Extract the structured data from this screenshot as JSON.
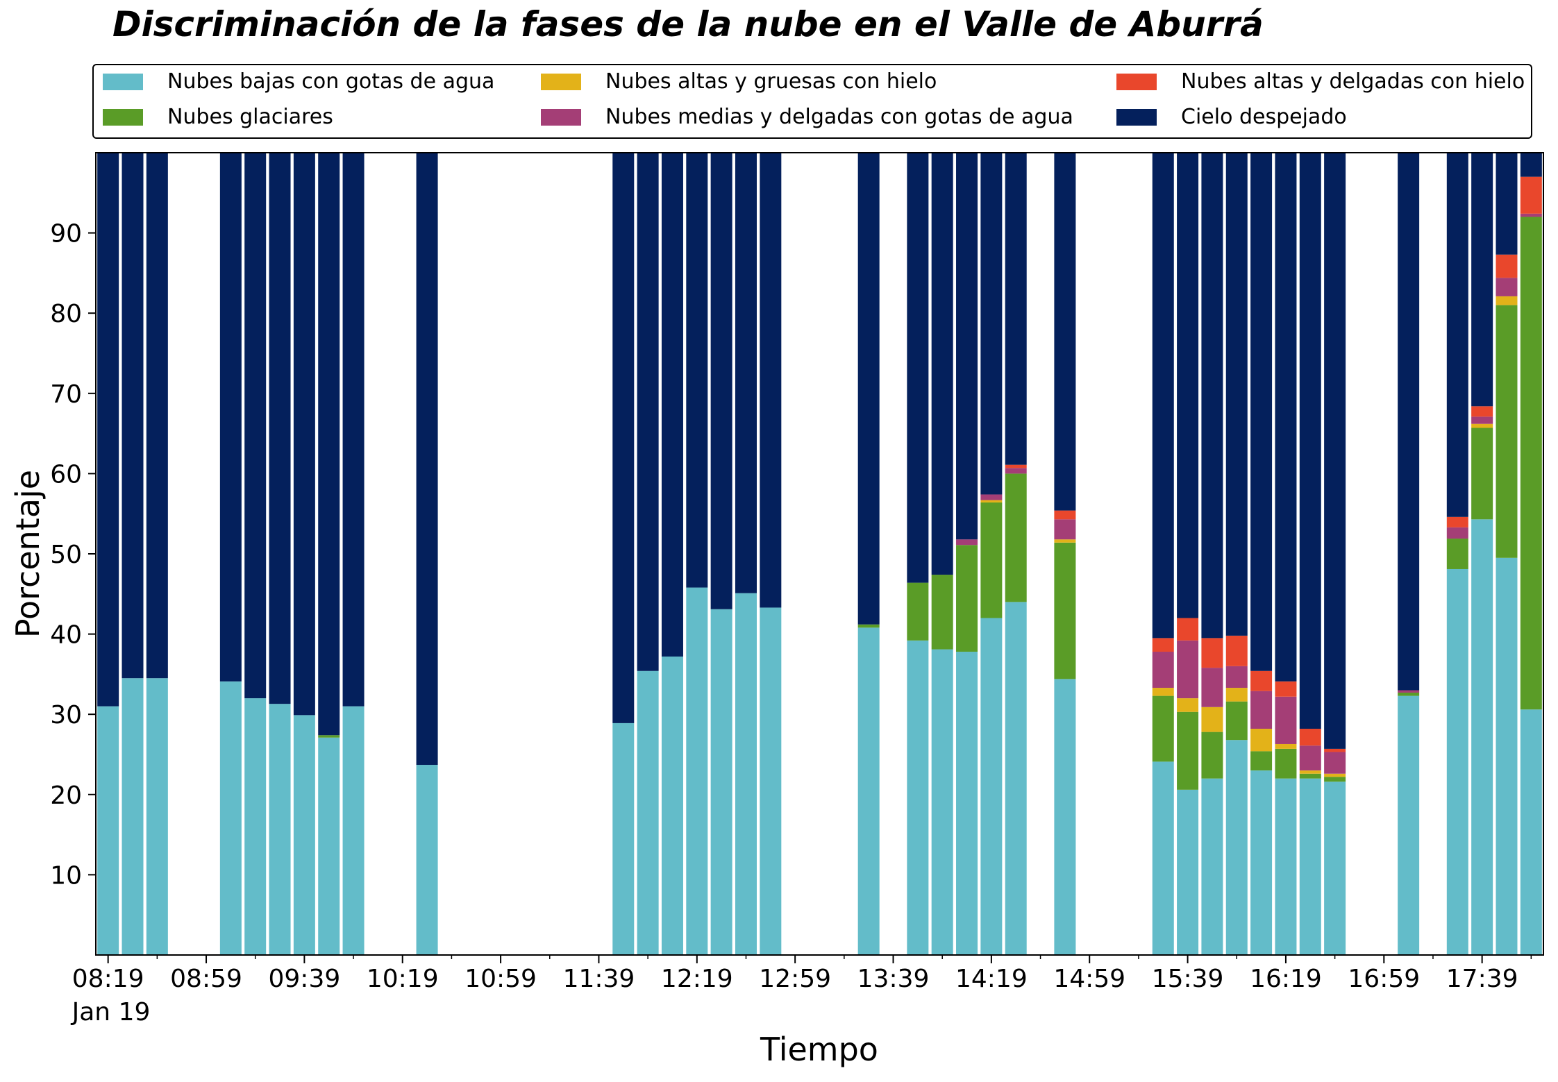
{
  "chart_data": {
    "type": "bar",
    "stacked": true,
    "title": "Discriminación de la fases de la nube en el Valle de Aburrá",
    "xlabel": "Tiempo",
    "ylabel": "Porcentaje",
    "ylim": [
      0,
      100
    ],
    "yticks": [
      10,
      20,
      30,
      40,
      50,
      60,
      70,
      80,
      90
    ],
    "xlim": [
      "08:14",
      "18:04"
    ],
    "xticks": [
      "08:19",
      "08:59",
      "09:39",
      "10:19",
      "10:59",
      "11:39",
      "12:19",
      "12:59",
      "13:39",
      "14:19",
      "14:59",
      "15:39",
      "16:19",
      "16:59",
      "17:39"
    ],
    "x_minor_ticks": [
      "08:39",
      "09:19",
      "09:59",
      "10:39",
      "11:19",
      "11:59",
      "12:39",
      "13:19",
      "13:59",
      "14:39",
      "15:19",
      "15:59",
      "16:39",
      "17:19",
      "17:59"
    ],
    "date_label": "Jan 19",
    "grid": false,
    "legend_position": "top",
    "times": [
      "08:19",
      "08:29",
      "08:39",
      "09:09",
      "09:19",
      "09:29",
      "09:39",
      "09:49",
      "09:59",
      "10:29",
      "11:49",
      "11:59",
      "12:09",
      "12:19",
      "12:29",
      "12:39",
      "12:49",
      "13:29",
      "13:49",
      "13:59",
      "14:09",
      "14:19",
      "14:29",
      "14:49",
      "15:29",
      "15:39",
      "15:49",
      "15:59",
      "16:09",
      "16:19",
      "16:29",
      "16:39",
      "17:09",
      "17:29",
      "17:39",
      "17:49",
      "17:59"
    ],
    "series": [
      {
        "name": "Nubes bajas con gotas de agua",
        "color": "#63BCC9",
        "values": [
          31.0,
          34.5,
          34.5,
          34.1,
          32.0,
          31.3,
          29.9,
          27.1,
          31.0,
          23.7,
          28.9,
          35.4,
          37.2,
          45.8,
          43.1,
          45.1,
          43.3,
          40.8,
          39.2,
          38.1,
          37.8,
          42.0,
          44.0,
          34.4,
          24.1,
          20.6,
          22.0,
          26.8,
          23.0,
          22.0,
          22.0,
          21.6,
          32.3,
          48.1,
          54.3,
          49.5,
          30.6
        ]
      },
      {
        "name": "Nubes glaciares",
        "color": "#5A9C27",
        "values": [
          0,
          0,
          0,
          0,
          0,
          0,
          0,
          0.3,
          0,
          0,
          0,
          0,
          0,
          0,
          0,
          0,
          0,
          0.4,
          7.2,
          9.3,
          13.3,
          14.4,
          16.0,
          17.0,
          8.2,
          9.7,
          5.8,
          4.8,
          2.4,
          3.7,
          0.6,
          0.6,
          0.4,
          3.8,
          11.4,
          31.5,
          61.4
        ]
      },
      {
        "name": "Nubes altas y gruesas con hielo",
        "color": "#E3B219",
        "values": [
          0,
          0,
          0,
          0,
          0,
          0,
          0,
          0,
          0,
          0,
          0,
          0,
          0,
          0,
          0,
          0,
          0,
          0,
          0,
          0,
          0,
          0.3,
          0,
          0.4,
          1.0,
          1.7,
          3.1,
          1.7,
          2.8,
          0.6,
          0.4,
          0.4,
          0,
          0,
          0.5,
          1.1,
          0
        ]
      },
      {
        "name": "Nubes medias y delgadas con gotas de agua",
        "color": "#A43E76",
        "values": [
          0,
          0,
          0,
          0,
          0,
          0,
          0,
          0,
          0,
          0,
          0,
          0,
          0,
          0,
          0,
          0,
          0,
          0,
          0,
          0,
          0.7,
          0.7,
          0.7,
          2.5,
          4.5,
          7.2,
          4.9,
          2.7,
          4.7,
          5.9,
          3.1,
          2.7,
          0.3,
          1.4,
          0.9,
          2.3,
          0.4
        ]
      },
      {
        "name": "Nubes altas y delgadas con hielo",
        "color": "#E9472C",
        "values": [
          0,
          0,
          0,
          0,
          0,
          0,
          0,
          0,
          0,
          0,
          0,
          0,
          0,
          0,
          0,
          0,
          0,
          0,
          0,
          0,
          0,
          0,
          0.4,
          1.1,
          1.7,
          2.8,
          3.7,
          3.8,
          2.5,
          1.9,
          2.1,
          0.4,
          0,
          1.3,
          1.3,
          2.9,
          4.6
        ]
      },
      {
        "name": "Cielo despejado",
        "color": "#04205C",
        "values": [
          69.0,
          65.5,
          65.5,
          65.9,
          68.0,
          68.7,
          70.1,
          72.6,
          69.0,
          76.3,
          71.1,
          64.6,
          62.8,
          54.2,
          56.9,
          54.9,
          56.7,
          58.8,
          53.6,
          52.6,
          48.2,
          42.6,
          38.9,
          44.6,
          60.5,
          58.0,
          60.5,
          60.2,
          64.6,
          65.9,
          71.8,
          74.3,
          67.0,
          45.4,
          31.6,
          12.7,
          3.0
        ]
      }
    ]
  }
}
